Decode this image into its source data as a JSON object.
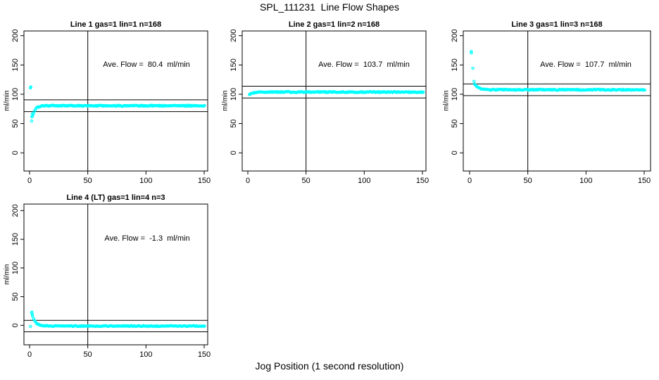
{
  "figure": {
    "title": "SPL_111231  Line Flow Shapes",
    "xlabel": "Jog Position (1 second resolution)",
    "background_color": "#ffffff",
    "point_color": "#00ffff",
    "axis_color": "#000000"
  },
  "chart_data": {
    "type": "scatter",
    "layout": "4 panels in 2 rows x 3 columns grid (last two cells empty)",
    "xlabel": "Jog Position (1 second resolution)",
    "ylabel": "ml/min",
    "x_ticks": [
      0,
      50,
      100,
      150
    ],
    "y_ticks": [
      0,
      50,
      100,
      150,
      200
    ],
    "xlim": [
      -5,
      153
    ],
    "ylim": [
      -31,
      208
    ],
    "grid": false,
    "marker": "open-circle",
    "panels": [
      {
        "title": "Line 1 gas=1 lin=1 n=168",
        "ylab": "ml/min",
        "n": 168,
        "ave_flow": 80.4,
        "ave_flow_label": "Ave. Flow =  80.4  ml/min",
        "ref_lines": [
          90.4,
          70.4
        ],
        "vline_x": 50,
        "series": {
          "model": "exponential-approach",
          "x_start": 1.8,
          "x_end": 151,
          "x_step": 0.75,
          "y_start": 54,
          "y_asymptote": 80.4,
          "tau": 2.2,
          "jitter": 0.8,
          "outliers": [
            [
              0.8,
              111
            ],
            [
              1.1,
              112.5
            ],
            [
              1.9,
              62
            ],
            [
              2.6,
              67
            ]
          ]
        }
      },
      {
        "title": "Line 2 gas=1 lin=2 n=168",
        "ylab": "ml/min",
        "n": 168,
        "ave_flow": 103.7,
        "ave_flow_label": "Ave. Flow =  103.7  ml/min",
        "ref_lines": [
          113.7,
          93.7
        ],
        "vline_x": 50,
        "series": {
          "model": "exponential-approach",
          "x_start": 1.5,
          "x_end": 151,
          "x_step": 0.75,
          "y_start": 100,
          "y_asymptote": 103.7,
          "tau": 2.5,
          "jitter": 0.8,
          "outliers": [
            [
              1.5,
              99.3
            ],
            [
              2.0,
              100.2
            ]
          ]
        }
      },
      {
        "title": "Line 3 gas=1 lin=3 n=168",
        "ylab": "ml/min",
        "n": 168,
        "ave_flow": 107.7,
        "ave_flow_label": "Ave. Flow =  107.7  ml/min",
        "ref_lines": [
          117.7,
          97.7
        ],
        "vline_x": 50,
        "series": {
          "model": "exponential-approach",
          "x_start": 4.2,
          "x_end": 151,
          "x_step": 0.75,
          "y_start": 118,
          "y_asymptote": 107.7,
          "tau": 3,
          "jitter": 0.8,
          "outliers": [
            [
              1.4,
              173
            ],
            [
              1.5,
              170.5
            ],
            [
              2.8,
              144.5
            ],
            [
              3.8,
              122
            ]
          ]
        }
      },
      {
        "title": "Line 4 (LT) gas=1 lin=4 n=3",
        "ylab": "ml/min",
        "n": 3,
        "ave_flow": -1.3,
        "ave_flow_label": "Ave. Flow =  -1.3  ml/min",
        "ref_lines": [
          8.7,
          -11.3
        ],
        "vline_x": 50,
        "series": {
          "model": "exponential-approach",
          "x_start": 1.8,
          "x_end": 151,
          "x_step": 0.75,
          "y_start": 21,
          "y_asymptote": -1.3,
          "tau": 3,
          "jitter": 0.8,
          "outliers": [
            [
              0.8,
              -2
            ],
            [
              2.0,
              23
            ],
            [
              2.4,
              19
            ]
          ]
        }
      }
    ]
  }
}
